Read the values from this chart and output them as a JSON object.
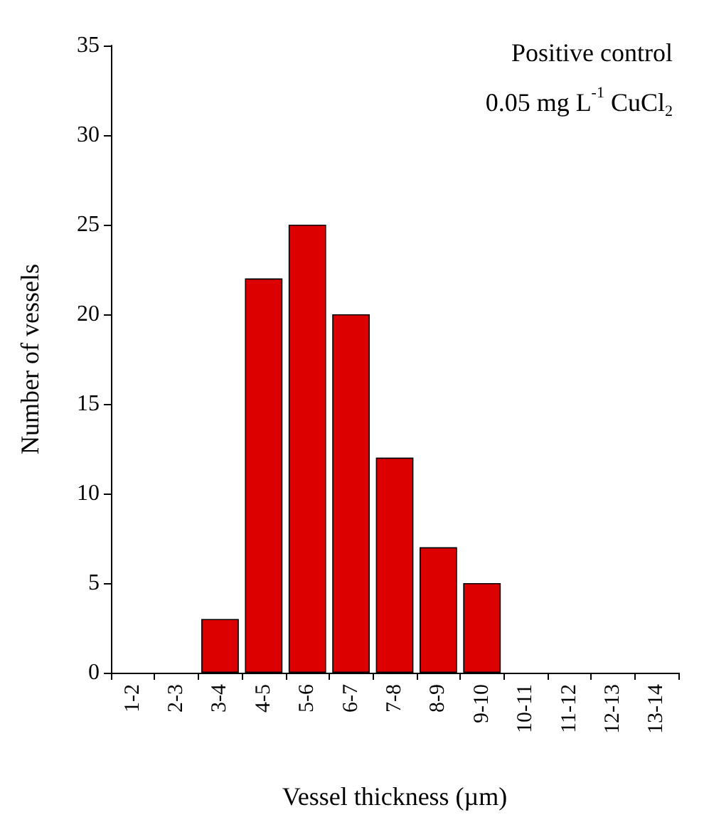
{
  "chart_data": {
    "type": "bar",
    "categories": [
      "1-2",
      "2-3",
      "3-4",
      "4-5",
      "5-6",
      "6-7",
      "7-8",
      "8-9",
      "9-10",
      "10-11",
      "11-12",
      "12-13",
      "13-14"
    ],
    "values": [
      0,
      0,
      3,
      22,
      25,
      20,
      12,
      7,
      5,
      0,
      0,
      0,
      0
    ],
    "color": "#dd0000",
    "xlabel": "Vessel thickness (µm)",
    "ylabel": "Number of vessels",
    "annotations": [
      "Positive control",
      "0.05 mg L$^{-1}$ CuCl$_{2}$"
    ],
    "ylim": [
      0,
      35
    ],
    "yticks": [
      0,
      5,
      10,
      15,
      20,
      25,
      30,
      35
    ],
    "grid": false
  }
}
